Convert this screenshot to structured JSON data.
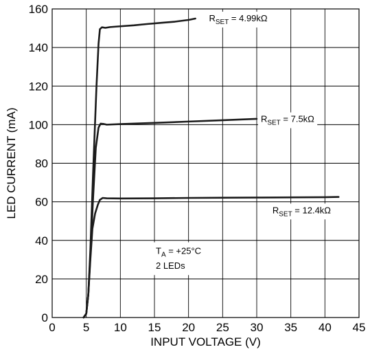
{
  "chart_data": {
    "type": "line",
    "title": "",
    "xlabel": "INPUT VOLTAGE (V)",
    "ylabel": "LED CURRENT (mA)",
    "xlim": [
      0,
      45
    ],
    "ylim": [
      0,
      160
    ],
    "x_ticks": [
      0,
      5,
      10,
      15,
      20,
      25,
      30,
      35,
      40,
      45
    ],
    "y_ticks": [
      0,
      20,
      40,
      60,
      80,
      100,
      120,
      140,
      160
    ],
    "grid": true,
    "line_color": "#1a1a1a",
    "series": [
      {
        "name": "RSET = 4.99kΩ",
        "label_main": "R",
        "label_sub": "SET",
        "label_rest": " = 4.99kΩ",
        "x": [
          4.6,
          5.0,
          5.3,
          5.6,
          6.0,
          6.5,
          6.8,
          7.0,
          7.3,
          7.8,
          8.5,
          10,
          12,
          14,
          16,
          18,
          20,
          21
        ],
        "y": [
          0,
          2,
          12,
          35,
          75,
          120,
          142,
          149.5,
          150.5,
          150.2,
          150.6,
          151.0,
          151.5,
          152.2,
          152.8,
          153.4,
          154.3,
          155.0
        ]
      },
      {
        "name": "RSET = 7.5kΩ",
        "label_main": "R",
        "label_sub": "SET",
        "label_rest": " = 7.5kΩ",
        "x": [
          4.6,
          5.0,
          5.3,
          5.6,
          6.0,
          6.4,
          6.8,
          7.1,
          7.5,
          8.0,
          10,
          15,
          20,
          25,
          30
        ],
        "y": [
          0,
          2,
          12,
          32,
          62,
          88,
          98.5,
          100.5,
          100.4,
          100.0,
          100.3,
          100.9,
          101.6,
          102.3,
          103.0
        ]
      },
      {
        "name": "RSET = 12.4kΩ",
        "label_main": "R",
        "label_sub": "SET",
        "label_rest": " = 12.4kΩ",
        "x": [
          4.6,
          5.0,
          5.3,
          5.6,
          5.9,
          6.3,
          6.7,
          7.0,
          7.4,
          8,
          10,
          15,
          20,
          25,
          30,
          35,
          40,
          42
        ],
        "y": [
          0,
          2,
          12,
          30,
          46,
          54,
          58.5,
          61.0,
          62.0,
          61.8,
          61.7,
          61.8,
          62.0,
          62.1,
          62.2,
          62.3,
          62.4,
          62.5
        ]
      }
    ],
    "annotation": {
      "line1_main": "T",
      "line1_sub": "A",
      "line1_rest": " = +25°C",
      "line2": "2 LEDs"
    }
  }
}
